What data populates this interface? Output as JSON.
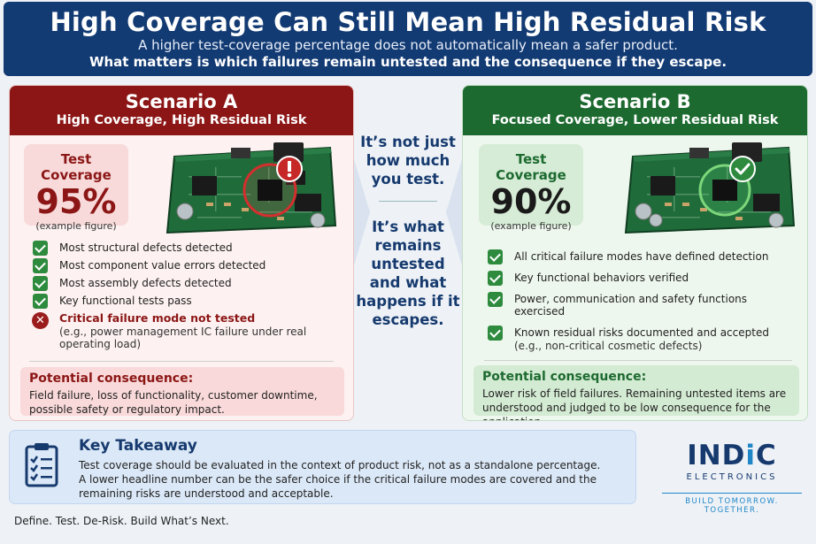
{
  "header": {
    "title": "High Coverage Can Still Mean High Residual Risk",
    "subtitle_line1": "A higher test-coverage percentage does not automatically mean a safer product.",
    "subtitle_line2": "What matters is which failures remain untested and the consequence if they escape."
  },
  "scenario_a": {
    "title": "Scenario A",
    "subtitle": "High Coverage, High Residual Risk",
    "coverage_label": "Test Coverage",
    "coverage_value": "95%",
    "coverage_note": "(example figure)",
    "status_icon": "warning-icon",
    "accent_color": "#8c1616",
    "items": [
      "Most structural defects detected",
      "Most component value errors detected",
      "Most assembly defects detected",
      "Key functional tests pass"
    ],
    "critical_item_title": "Critical failure mode not tested",
    "critical_item_detail": "(e.g., power management IC failure under real operating load)",
    "consequence_title": "Potential consequence:",
    "consequence_text": "Field failure, loss of functionality, customer downtime, possible safety or regulatory impact."
  },
  "middle": {
    "text_top": "It’s not just how much you test.",
    "text_bottom": "It’s what remains untested and what happens if it escapes."
  },
  "scenario_b": {
    "title": "Scenario B",
    "subtitle": "Focused Coverage, Lower Residual Risk",
    "coverage_label": "Test Coverage",
    "coverage_value": "90%",
    "coverage_note": "(example figure)",
    "status_icon": "check-badge-icon",
    "accent_color": "#1d6a30",
    "items": [
      "All critical failure modes have defined detection",
      "Key functional behaviors verified",
      "Power, communication and safety functions exercised",
      "Known residual risks documented and accepted"
    ],
    "last_item_detail": "(e.g., non-critical cosmetic defects)",
    "consequence_title": "Potential consequence:",
    "consequence_text": "Lower risk of field failures. Remaining untested items are understood and judged to be low consequence for the application."
  },
  "takeaway": {
    "icon": "clipboard-checklist-icon",
    "title": "Key Takeaway",
    "line1": "Test coverage should be evaluated in the context of product risk, not as a standalone percentage.",
    "line2": "A lower headline number can be the safer choice if the critical failure modes are covered and the remaining risks are understood and acceptable."
  },
  "footer": {
    "slogan": "Define. Test. De-Risk. Build What’s Next."
  },
  "logo": {
    "name_part1": "IND",
    "name_part2": "i",
    "name_part3": "C",
    "subtitle": "ELECTRONICS",
    "tagline": "BUILD TOMORROW. TOGETHER."
  }
}
